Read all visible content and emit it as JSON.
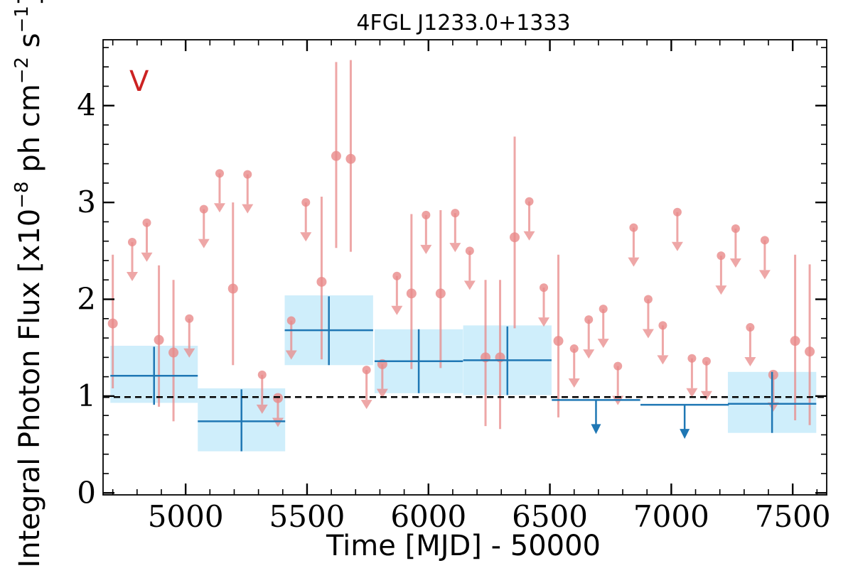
{
  "chart_data": {
    "type": "scatter",
    "title": "4FGL J1233.0+1333",
    "xlabel": "Time [MJD] - 50000",
    "ylabel": "Integral Photon Flux [x10",
    "ylabel_exp1": "−8",
    "ylabel_mid": " ph cm",
    "ylabel_exp2": "−2",
    "ylabel_mid2": " s",
    "ylabel_exp3": "−1",
    "ylabel_end": "]",
    "band_label": "V",
    "xlim": [
      4660,
      7640
    ],
    "ylim": [
      -0.02,
      4.68
    ],
    "xticks": [
      5000,
      5500,
      6000,
      6500,
      7000,
      7500
    ],
    "xtick_labels": [
      "5000",
      "5500",
      "6000",
      "6500",
      "7000",
      "7500"
    ],
    "yticks": [
      0,
      1,
      2,
      3,
      4
    ],
    "ytick_labels": [
      "0",
      "1",
      "2",
      "3",
      "4"
    ],
    "reference_level": 0.99,
    "colors": {
      "band_fill": "#cfeefb",
      "band_line": "#1f77b4",
      "points": "#e88a8a",
      "band_label": "#cc2222"
    },
    "series": [
      {
        "name": "",
        "kind": "long-bins",
        "detections": [
          {
            "x": 4870,
            "xerr": 180,
            "y": 1.21,
            "yerr_lo": 0.3,
            "yerr_hi": 0.3,
            "box_lo": 0.93,
            "box_hi": 1.52
          },
          {
            "x": 5230,
            "xerr": 180,
            "y": 0.74,
            "yerr_lo": 0.31,
            "yerr_hi": 0.33,
            "box_lo": 0.43,
            "box_hi": 1.08
          },
          {
            "x": 5590,
            "xerr": 182,
            "y": 1.68,
            "yerr_lo": 0.36,
            "yerr_hi": 0.35,
            "box_lo": 1.32,
            "box_hi": 2.04
          },
          {
            "x": 5960,
            "xerr": 182,
            "y": 1.36,
            "yerr_lo": 0.33,
            "yerr_hi": 0.33,
            "box_lo": 1.03,
            "box_hi": 1.69
          },
          {
            "x": 6325,
            "xerr": 182,
            "y": 1.37,
            "yerr_lo": 0.36,
            "yerr_hi": 0.35,
            "box_lo": 1.01,
            "box_hi": 1.73
          },
          {
            "x": 7415,
            "xerr": 182,
            "y": 0.92,
            "yerr_lo": 0.3,
            "yerr_hi": 0.33,
            "box_lo": 0.62,
            "box_hi": 1.25
          }
        ],
        "upper_limits": [
          {
            "x": 6690,
            "xerr": 182,
            "y": 0.96
          },
          {
            "x": 7055,
            "xerr": 182,
            "y": 0.91
          }
        ]
      },
      {
        "name": "",
        "kind": "short-bins",
        "detections": [
          {
            "x": 4700,
            "y": 1.75,
            "yerr_lo": 0.67,
            "yerr_hi": 0.71
          },
          {
            "x": 4890,
            "y": 1.58,
            "yerr_lo": 0.69,
            "yerr_hi": 0.77
          },
          {
            "x": 4950,
            "y": 1.45,
            "yerr_lo": 0.71,
            "yerr_hi": 0.75
          },
          {
            "x": 5195,
            "y": 2.11,
            "yerr_lo": 0.79,
            "yerr_hi": 0.89
          },
          {
            "x": 5380,
            "y": 0.98,
            "yerr_lo": 0.3,
            "yerr_hi": 0.0
          },
          {
            "x": 5560,
            "y": 2.18,
            "yerr_lo": 0.8,
            "yerr_hi": 0.88
          },
          {
            "x": 5620,
            "y": 3.48,
            "yerr_lo": 0.95,
            "yerr_hi": 0.97
          },
          {
            "x": 5680,
            "y": 3.45,
            "yerr_lo": 0.96,
            "yerr_hi": 1.02
          },
          {
            "x": 5810,
            "y": 1.33,
            "yerr_lo": 0.35,
            "yerr_hi": 0.0
          },
          {
            "x": 5930,
            "y": 2.06,
            "yerr_lo": 0.78,
            "yerr_hi": 0.82
          },
          {
            "x": 6050,
            "y": 2.06,
            "yerr_lo": 0.77,
            "yerr_hi": 0.86
          },
          {
            "x": 6235,
            "y": 1.4,
            "yerr_lo": 0.71,
            "yerr_hi": 0.8
          },
          {
            "x": 6295,
            "y": 1.4,
            "yerr_lo": 0.74,
            "yerr_hi": 0.8
          },
          {
            "x": 6355,
            "y": 2.64,
            "yerr_lo": 0.94,
            "yerr_hi": 1.04
          },
          {
            "x": 6535,
            "y": 1.57,
            "yerr_lo": 0.79,
            "yerr_hi": 0.89
          },
          {
            "x": 7420,
            "y": 1.22,
            "yerr_lo": 0.38,
            "yerr_hi": 0.0
          },
          {
            "x": 7510,
            "y": 1.57,
            "yerr_lo": 0.82,
            "yerr_hi": 0.89
          },
          {
            "x": 7570,
            "y": 1.46,
            "yerr_lo": 0.76,
            "yerr_hi": 0.9
          }
        ],
        "upper_limits": [
          {
            "x": 4780,
            "y": 2.59
          },
          {
            "x": 4840,
            "y": 2.79
          },
          {
            "x": 5015,
            "y": 1.8
          },
          {
            "x": 5075,
            "y": 2.93
          },
          {
            "x": 5140,
            "y": 3.3
          },
          {
            "x": 5255,
            "y": 3.29
          },
          {
            "x": 5315,
            "y": 1.22
          },
          {
            "x": 5435,
            "y": 1.78
          },
          {
            "x": 5495,
            "y": 3.0
          },
          {
            "x": 5745,
            "y": 1.27
          },
          {
            "x": 5870,
            "y": 2.24
          },
          {
            "x": 5990,
            "y": 2.87
          },
          {
            "x": 6110,
            "y": 2.89
          },
          {
            "x": 6170,
            "y": 2.5
          },
          {
            "x": 6415,
            "y": 3.01
          },
          {
            "x": 6475,
            "y": 2.12
          },
          {
            "x": 6600,
            "y": 1.49
          },
          {
            "x": 6660,
            "y": 1.79
          },
          {
            "x": 6720,
            "y": 1.9
          },
          {
            "x": 6780,
            "y": 1.31
          },
          {
            "x": 6845,
            "y": 2.74
          },
          {
            "x": 6905,
            "y": 2.0
          },
          {
            "x": 6965,
            "y": 1.73
          },
          {
            "x": 7025,
            "y": 2.9
          },
          {
            "x": 7085,
            "y": 1.39
          },
          {
            "x": 7145,
            "y": 1.36
          },
          {
            "x": 7205,
            "y": 2.45
          },
          {
            "x": 7265,
            "y": 2.73
          },
          {
            "x": 7325,
            "y": 1.71
          },
          {
            "x": 7385,
            "y": 2.61
          }
        ]
      }
    ]
  }
}
